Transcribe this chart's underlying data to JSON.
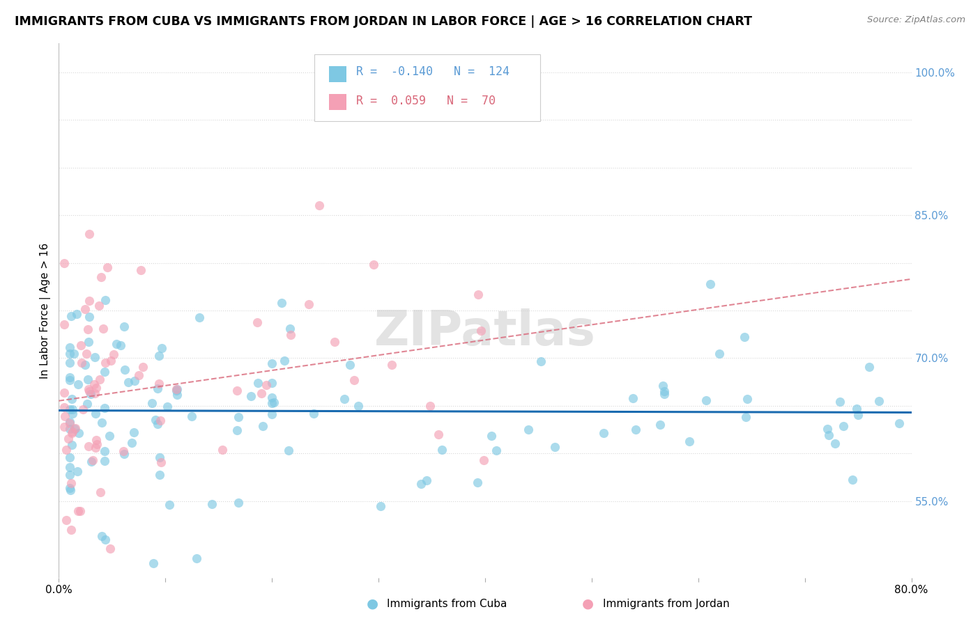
{
  "title": "IMMIGRANTS FROM CUBA VS IMMIGRANTS FROM JORDAN IN LABOR FORCE | AGE > 16 CORRELATION CHART",
  "source": "Source: ZipAtlas.com",
  "ylabel": "In Labor Force | Age > 16",
  "xlim": [
    0.0,
    0.8
  ],
  "ylim": [
    0.47,
    1.03
  ],
  "cuba_R": -0.14,
  "cuba_N": 124,
  "jordan_R": 0.059,
  "jordan_N": 70,
  "cuba_color": "#7ec8e3",
  "jordan_color": "#f4a0b5",
  "cuba_line_color": "#1a6bb0",
  "jordan_line_color": "#d9687a",
  "background_color": "#ffffff",
  "grid_color": "#d8d8d8",
  "watermark": "ZIPatlas",
  "ytick_positions": [
    0.55,
    0.6,
    0.65,
    0.7,
    0.75,
    0.8,
    0.85,
    0.9,
    0.95,
    1.0
  ],
  "right_ytick_positions": [
    0.55,
    0.7,
    0.85,
    1.0
  ],
  "right_ytick_labels": [
    "55.0%",
    "70.0%",
    "85.0%",
    "100.0%"
  ],
  "right_ytick_color": "#5b9bd5"
}
